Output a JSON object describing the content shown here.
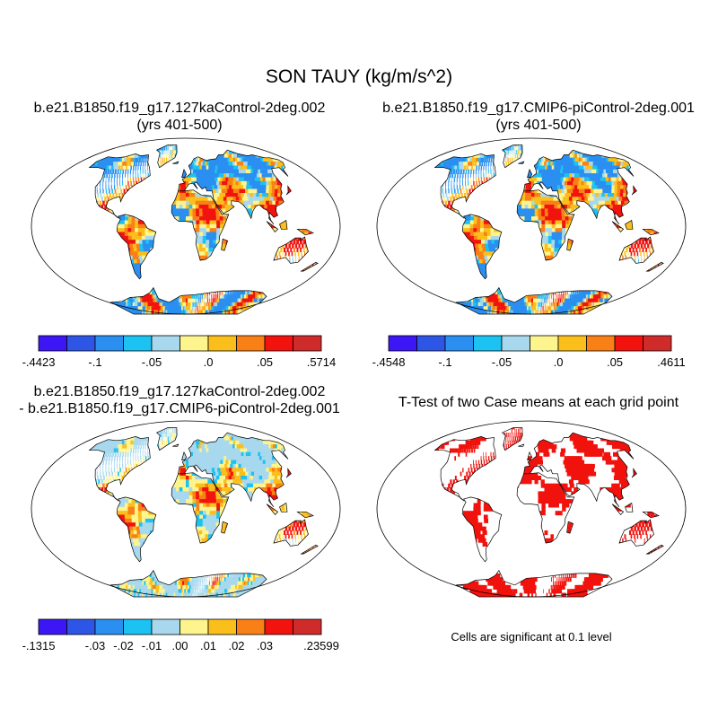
{
  "main_title": "SON TAUY (kg/m/s^2)",
  "panels": [
    {
      "id": "case1",
      "title_lines": [
        "b.e21.B1850.f19_g17.127kaControl-2deg.002",
        "(yrs 401-500)"
      ],
      "colorbar": {
        "colors": [
          "#3c16f5",
          "#2e56e6",
          "#2a8ff0",
          "#1cc2f2",
          "#a8d8ee",
          "#fdf48e",
          "#fbbf1b",
          "#f98016",
          "#f2130f",
          "#cf2b2b"
        ],
        "labels": [
          "-.4423",
          "-.1",
          "-.05",
          ".0",
          ".05",
          ".5714"
        ]
      },
      "pattern": "standard"
    },
    {
      "id": "case2",
      "title_lines": [
        "b.e21.B1850.f19_g17.CMIP6-piControl-2deg.001",
        "(yrs 401-500)"
      ],
      "colorbar": {
        "colors": [
          "#3c16f5",
          "#2e56e6",
          "#2a8ff0",
          "#1cc2f2",
          "#a8d8ee",
          "#fdf48e",
          "#fbbf1b",
          "#f98016",
          "#f2130f",
          "#cf2b2b"
        ],
        "labels": [
          "-.4548",
          "-.1",
          "-.05",
          ".0",
          ".05",
          ".4611"
        ]
      },
      "pattern": "standard"
    },
    {
      "id": "difference",
      "title_lines": [
        "b.e21.B1850.f19_g17.127kaControl-2deg.002",
        "- b.e21.B1850.f19_g17.CMIP6-piControl-2deg.001"
      ],
      "colorbar": {
        "colors": [
          "#3c16f5",
          "#2e56e6",
          "#2a8ff0",
          "#1cc2f2",
          "#a8d8ee",
          "#fdf48e",
          "#fbbf1b",
          "#f98016",
          "#f2130f",
          "#cf2b2b"
        ],
        "labels": [
          "-.1315",
          "-.03",
          "-.02",
          "-.01",
          ".00",
          ".01",
          ".02",
          ".03",
          ".23599"
        ]
      },
      "pattern": "difference"
    },
    {
      "id": "ttest",
      "title_lines": [
        "T-Test of two Case means at each grid point"
      ],
      "note": "Cells are significant at 0.1 level",
      "pattern": "significance"
    }
  ]
}
